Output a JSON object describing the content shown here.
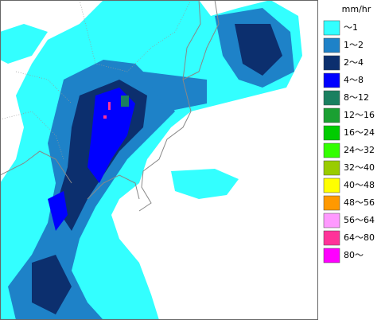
{
  "legend": {
    "unit": "mm/hr",
    "items": [
      {
        "label": "～1",
        "color": "#33ffff"
      },
      {
        "label": "1～2",
        "color": "#1e82c8"
      },
      {
        "label": "2～4",
        "color": "#0c2f6e"
      },
      {
        "label": "4～8",
        "color": "#0000ff"
      },
      {
        "label": "8～12",
        "color": "#1a8060"
      },
      {
        "label": "12～16",
        "color": "#1aa032"
      },
      {
        "label": "16～24",
        "color": "#00cc00"
      },
      {
        "label": "24～32",
        "color": "#33ff00"
      },
      {
        "label": "32～40",
        "color": "#99cc00"
      },
      {
        "label": "40～48",
        "color": "#ffff00"
      },
      {
        "label": "48～56",
        "color": "#ff9900"
      },
      {
        "label": "56～64",
        "color": "#ff99ff"
      },
      {
        "label": "64～80",
        "color": "#ff3399"
      },
      {
        "label": "80～",
        "color": "#ff00ff"
      }
    ]
  }
}
